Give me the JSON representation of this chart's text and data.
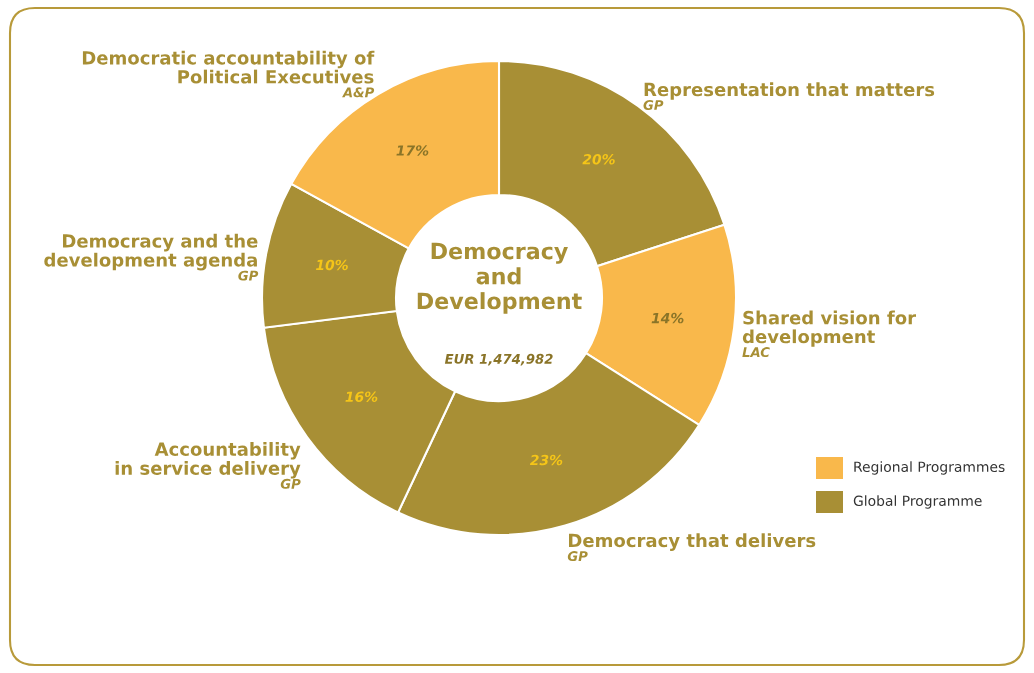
{
  "chart_data": {
    "type": "donut",
    "title": "Democracy\nand\nDevelopment",
    "subtitle": "EUR 1,474,982",
    "categories": [
      "Representation that matters",
      "Shared vision for\ndevelopment",
      "Democracy that delivers",
      "Accountability\nin service delivery",
      "Democracy and the\ndevelopment agenda",
      "Democratic accountability of\nPolitical Executives"
    ],
    "values": [
      20,
      14,
      23,
      16,
      10,
      17
    ],
    "colors": [
      "#a88f35",
      "#f9b84b",
      "#a88f35",
      "#a88f35",
      "#a88f35",
      "#f9b84b"
    ],
    "value_labels": [
      "20%",
      "14%",
      "23%",
      "16%",
      "10%",
      "17%"
    ],
    "annotations": [
      {
        "text": "GP",
        "x": "Representation that matters"
      },
      {
        "text": "LAC",
        "x": "Shared vision for\ndevelopment"
      },
      {
        "text": "GP",
        "x": "Democracy that delivers"
      },
      {
        "text": "GP",
        "x": "Accountability\nin service delivery"
      },
      {
        "text": "GP",
        "x": "Democracy and the\ndevelopment agenda"
      },
      {
        "text": "A&P",
        "x": "Democratic accountability of\nPolitical Executives"
      },
      "Regional Programmes",
      "Global Programme"
    ]
  }
}
